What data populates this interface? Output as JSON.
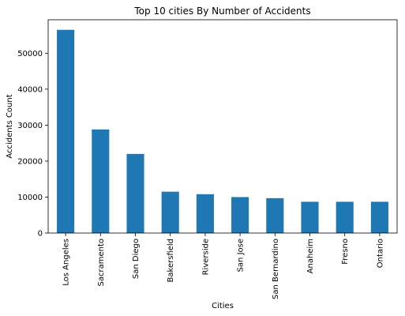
{
  "chart_data": {
    "type": "bar",
    "title": "Top 10 cities By Number of Accidents",
    "xlabel": "Cities",
    "ylabel": "Accidents Count",
    "categories": [
      "Los Angeles",
      "Sacramento",
      "San Diego",
      "Bakersfield",
      "Riverside",
      "San Jose",
      "San Bernardino",
      "Anaheim",
      "Fresno",
      "Ontario"
    ],
    "values": [
      56500,
      28800,
      22000,
      11500,
      10800,
      10000,
      9700,
      8700,
      8700,
      8700
    ],
    "ylim": [
      0,
      59300
    ],
    "yticks": [
      0,
      10000,
      20000,
      30000,
      40000,
      50000
    ],
    "grid": false,
    "bar_color": "#1f77b4"
  }
}
